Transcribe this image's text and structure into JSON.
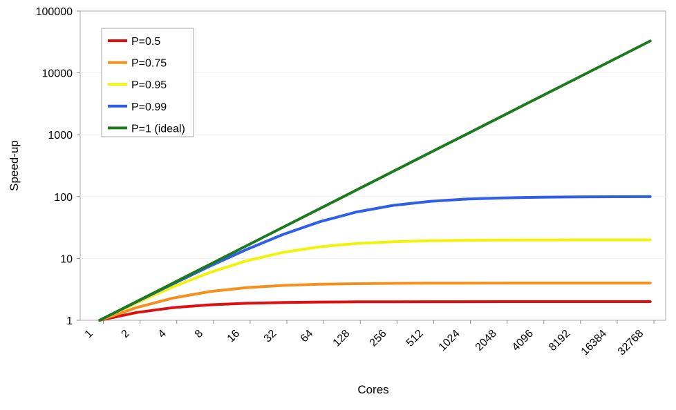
{
  "chart_data": {
    "type": "line",
    "xlabel": "Cores",
    "ylabel": "Speed-up",
    "yscale": "log",
    "ylim": [
      1,
      100000
    ],
    "x_ticks": [
      "1",
      "2",
      "4",
      "8",
      "16",
      "32",
      "64",
      "128",
      "256",
      "512",
      "1024",
      "2048",
      "4096",
      "8192",
      "16384",
      "32768"
    ],
    "y_ticks": [
      "1",
      "10",
      "100",
      "1000",
      "10000",
      "100000"
    ],
    "legend_position": "top-left",
    "grid": false,
    "x": [
      1,
      2,
      4,
      8,
      16,
      32,
      64,
      128,
      256,
      512,
      1024,
      2048,
      4096,
      8192,
      16384,
      32768
    ],
    "series": [
      {
        "name": "P=0.5",
        "color": "#dd1111",
        "values": [
          1,
          1.333,
          1.6,
          1.778,
          1.882,
          1.939,
          1.969,
          1.984,
          1.992,
          1.996,
          1.998,
          1.999,
          2.0,
          2.0,
          2.0,
          2.0
        ]
      },
      {
        "name": "P=0.75",
        "color": "#f5901e",
        "values": [
          1,
          1.6,
          2.286,
          2.909,
          3.368,
          3.657,
          3.821,
          3.908,
          3.954,
          3.977,
          3.988,
          3.994,
          3.997,
          3.999,
          3.999,
          4.0
        ]
      },
      {
        "name": "P=0.95",
        "color": "#f2f20a",
        "values": [
          1,
          1.905,
          3.478,
          5.926,
          9.143,
          12.549,
          15.422,
          17.414,
          18.618,
          19.284,
          19.636,
          19.817,
          19.908,
          19.954,
          19.977,
          19.988
        ]
      },
      {
        "name": "P=0.99",
        "color": "#2f5fe8",
        "values": [
          1,
          1.98,
          3.883,
          7.477,
          13.913,
          24.427,
          39.264,
          56.388,
          72.113,
          83.797,
          91.18,
          95.35,
          97.62,
          98.79,
          99.39,
          99.7
        ]
      },
      {
        "name": "P=1 (ideal)",
        "color": "#1e7a1e",
        "values": [
          1,
          2,
          4,
          8,
          16,
          32,
          64,
          128,
          256,
          512,
          1024,
          2048,
          4096,
          8192,
          16384,
          32768
        ]
      }
    ]
  }
}
